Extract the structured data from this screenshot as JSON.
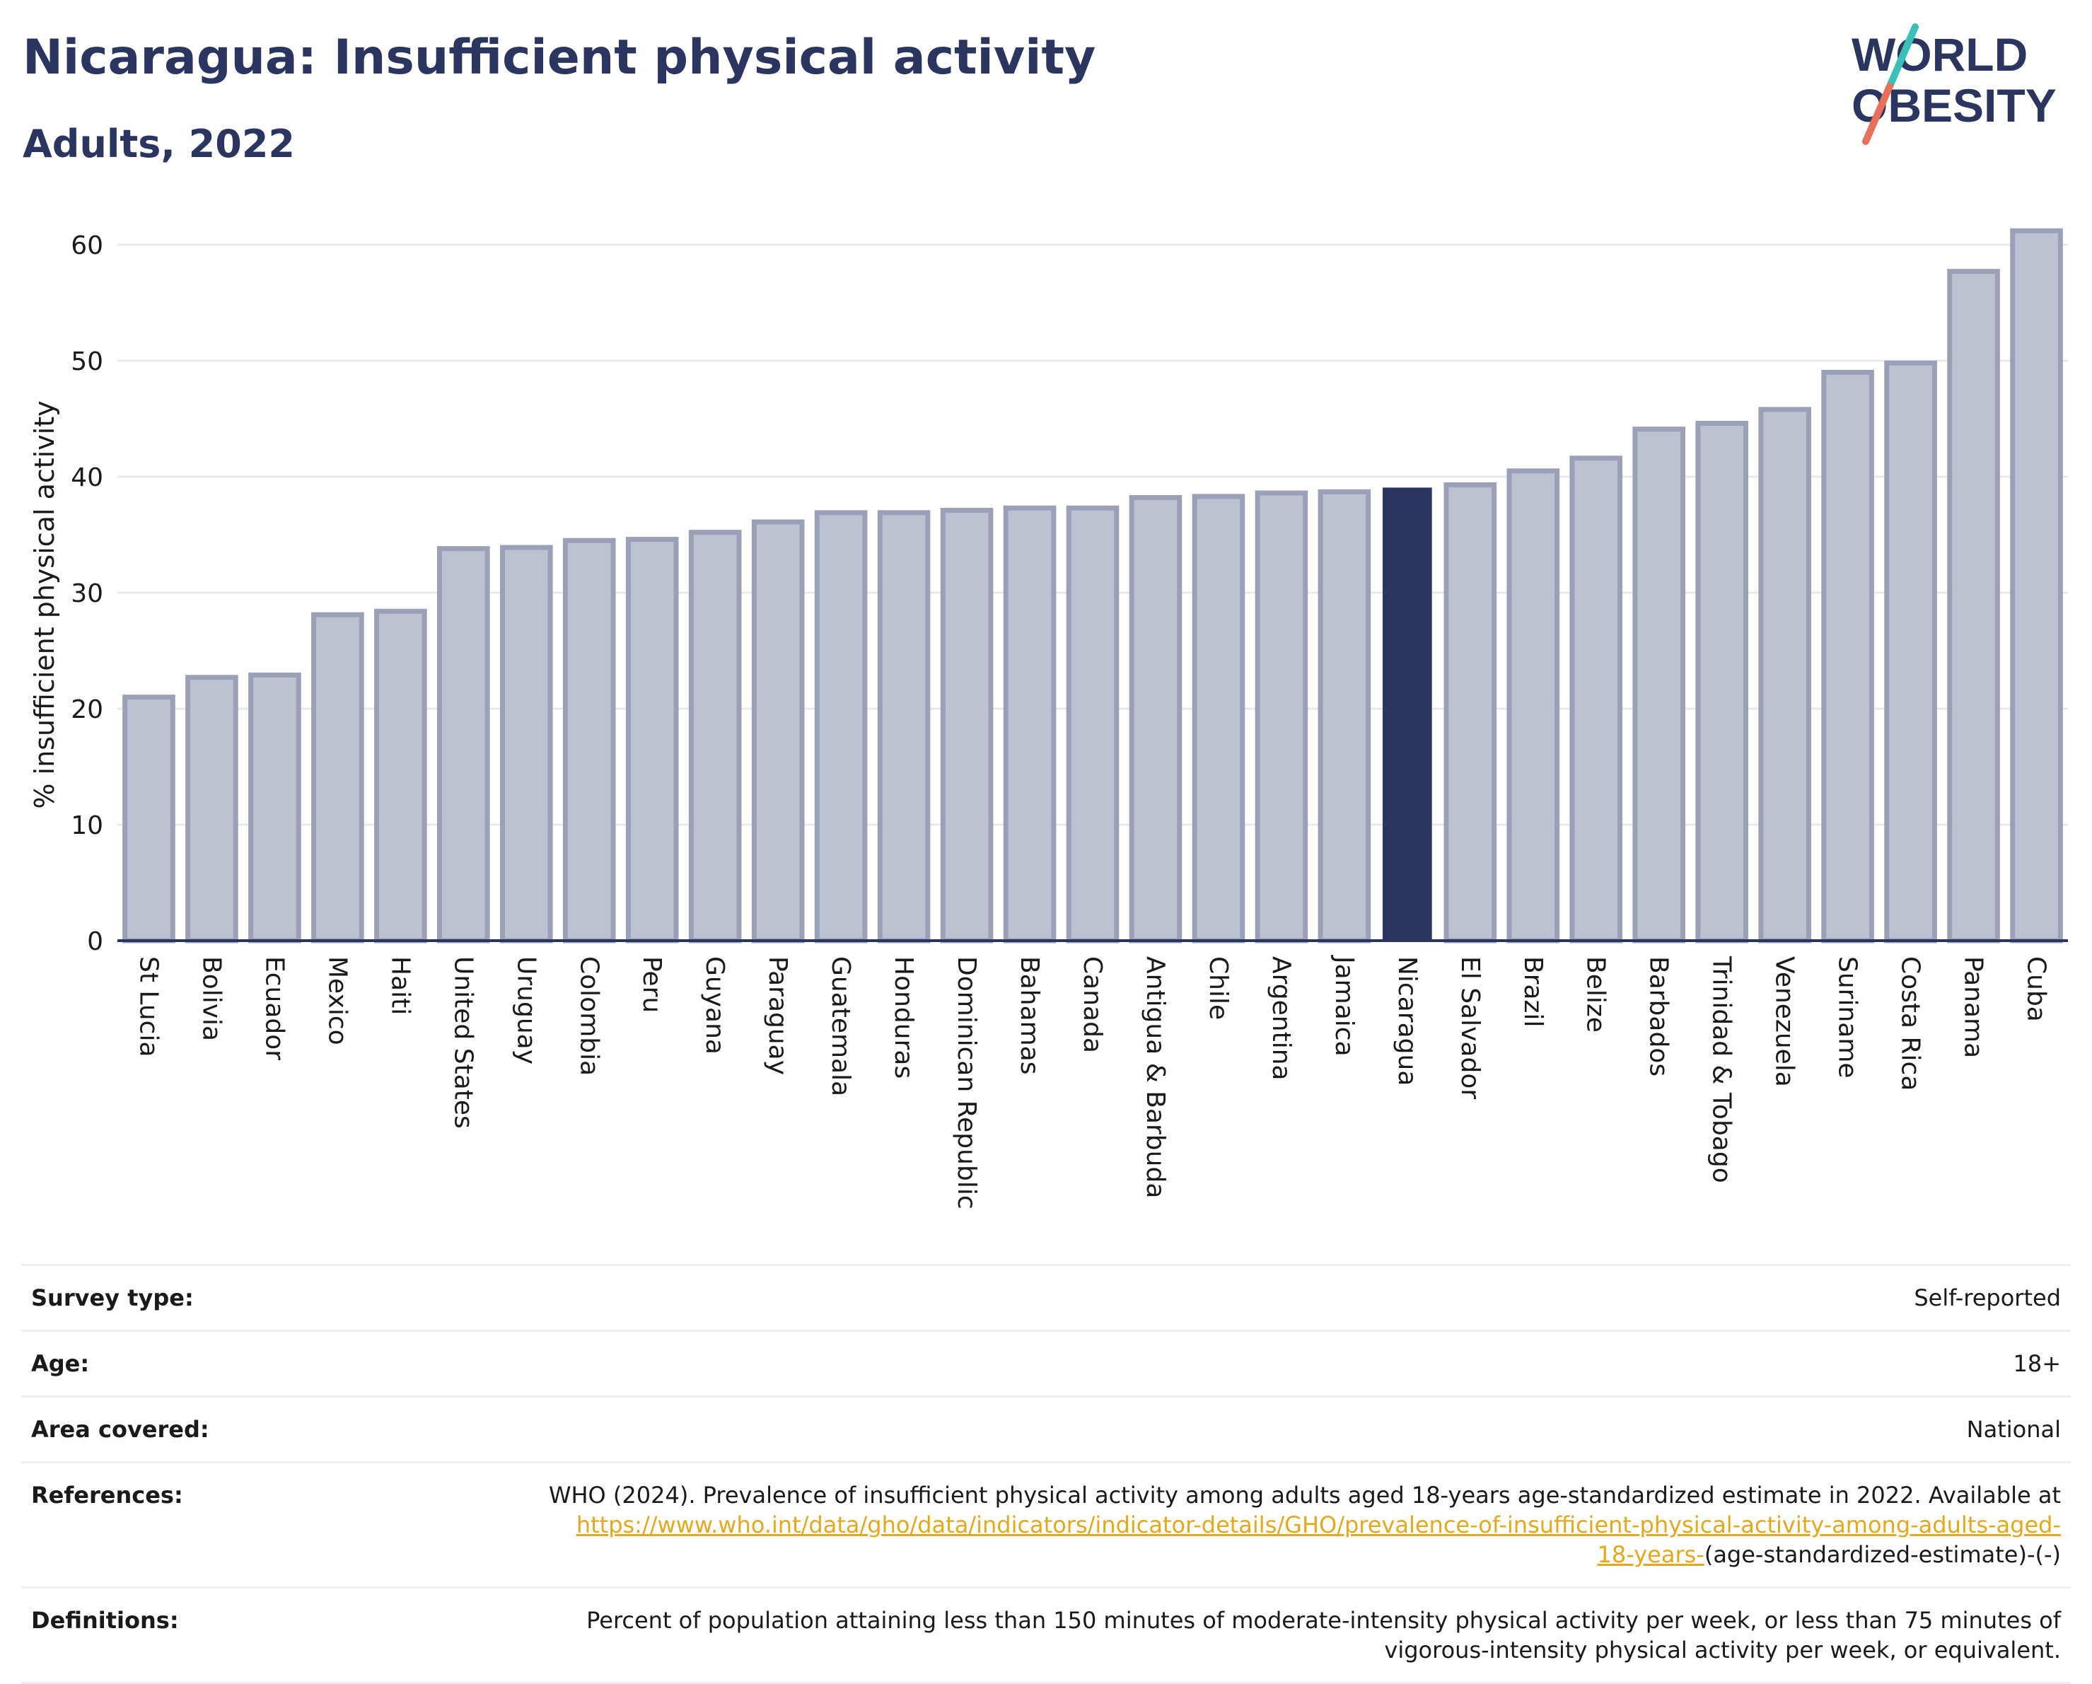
{
  "header": {
    "title": "Nicaragua: Insufficient physical activity",
    "subtitle": "Adults, 2022"
  },
  "logo": {
    "line1": "WORLD",
    "line2": "OBESITY",
    "slash_colors": [
      "#3bbfb9",
      "#e8705a"
    ]
  },
  "colors": {
    "highlight": "#2a3560",
    "bar_fill": "#bec2d0",
    "bar_stroke": "#9aa0b8",
    "link": "#e3a81c"
  },
  "chart_data": {
    "type": "bar",
    "title": "Nicaragua: Insufficient physical activity",
    "subtitle": "Adults, 2022",
    "ylabel": "% insufficient physical activity",
    "xlabel": "",
    "ylim": [
      0,
      62
    ],
    "yticks": [
      0,
      10,
      20,
      30,
      40,
      50,
      60
    ],
    "grid": true,
    "highlight": "Nicaragua",
    "categories": [
      "St Lucia",
      "Bolivia",
      "Ecuador",
      "Mexico",
      "Haiti",
      "United States",
      "Uruguay",
      "Colombia",
      "Peru",
      "Guyana",
      "Paraguay",
      "Guatemala",
      "Honduras",
      "Dominican Republic",
      "Bahamas",
      "Canada",
      "Antigua & Barbuda",
      "Chile",
      "Argentina",
      "Jamaica",
      "Nicaragua",
      "El Salvador",
      "Brazil",
      "Belize",
      "Barbados",
      "Trinidad & Tobago",
      "Venezuela",
      "Suriname",
      "Costa Rica",
      "Panama",
      "Cuba"
    ],
    "values": [
      21.0,
      22.7,
      22.9,
      28.1,
      28.4,
      33.8,
      33.9,
      34.5,
      34.6,
      35.2,
      36.1,
      36.9,
      36.9,
      37.1,
      37.3,
      37.3,
      38.2,
      38.3,
      38.6,
      38.7,
      39.0,
      39.3,
      40.5,
      41.6,
      44.1,
      44.6,
      45.8,
      49.0,
      49.8,
      57.7,
      61.2
    ]
  },
  "info": {
    "survey_type_label": "Survey type:",
    "survey_type_value": "Self-reported",
    "age_label": "Age:",
    "age_value": "18+",
    "area_label": "Area covered:",
    "area_value": "National",
    "references_label": "References:",
    "references_text": "WHO (2024). Prevalence of insufficient physical activity among adults aged 18-years age-standardized estimate in 2022. Available at",
    "references_link": "https://www.who.int/data/gho/data/indicators/indicator-details/GHO/prevalence-of-insufficient-physical-activity-among-adults-aged-18-years-",
    "references_suffix": "(age-standardized-estimate)-(-)",
    "definitions_label": "Definitions:",
    "definitions_text": "Percent of population attaining less than 150 minutes of moderate-intensity physical activity per week, or less than 75 minutes of vigorous-intensity physical activity per week, or equivalent."
  }
}
